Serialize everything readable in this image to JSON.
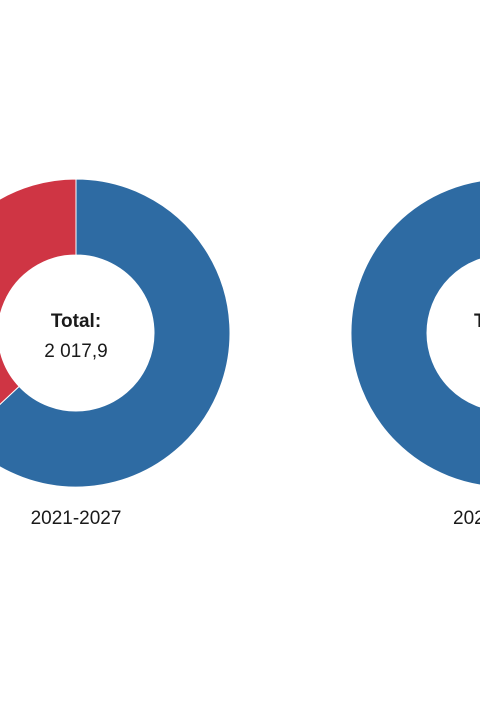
{
  "chart_data": [
    {
      "type": "pie",
      "donut": true,
      "center_label": "Total:",
      "center_value": "2 017,9",
      "period": "2021-2027",
      "slices": [
        {
          "value": 0.63,
          "color": "#2e6ba3"
        },
        {
          "value": 0.37,
          "color": "#cf3544"
        }
      ]
    },
    {
      "type": "pie",
      "donut": true,
      "center_label": "T",
      "center_value": "",
      "period": "202",
      "slices": [
        {
          "value": 1.0,
          "color": "#2e6ba3"
        }
      ]
    }
  ]
}
